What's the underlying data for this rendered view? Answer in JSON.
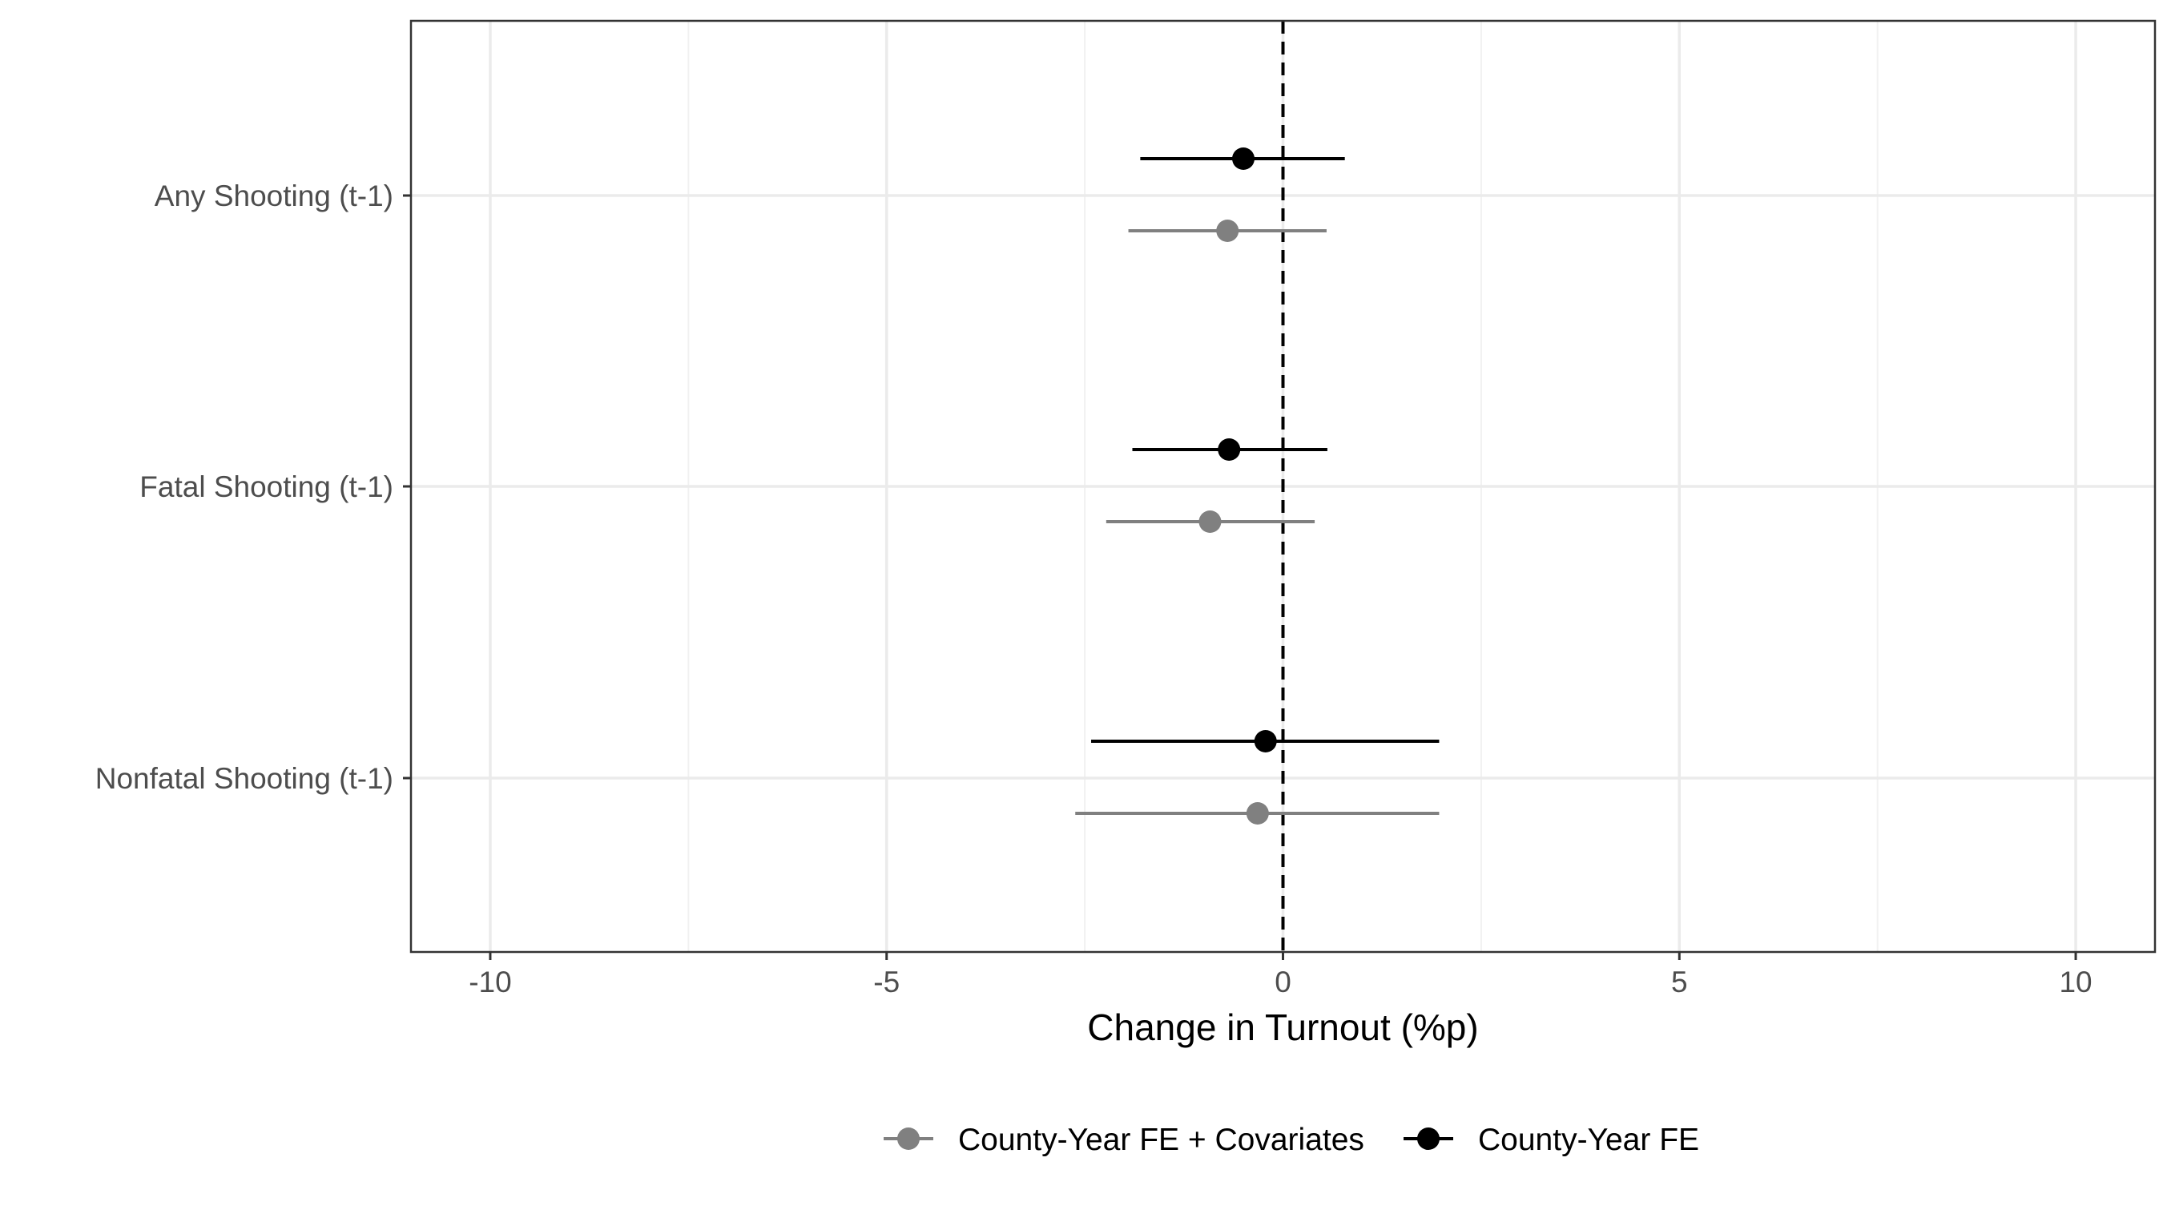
{
  "chart_data": {
    "type": "scatter",
    "subtype": "coefficient-plot",
    "title": "",
    "xlabel": "Change in Turnout (%p)",
    "ylabel": "",
    "xlim": [
      -11,
      11
    ],
    "x_ticks": [
      -10,
      -5,
      0,
      5,
      10
    ],
    "x_tick_labels": [
      "-10",
      "-5",
      "0",
      "5",
      "10"
    ],
    "x_minor_ticks": [
      -7.5,
      -2.5,
      2.5,
      7.5
    ],
    "grid": true,
    "reference_line": {
      "x": 0,
      "style": "dashed",
      "color": "#000000"
    },
    "categories": [
      "Any Shooting (t-1)",
      "Fatal Shooting (t-1)",
      "Nonfatal Shooting (t-1)"
    ],
    "legend_position": "bottom",
    "series": [
      {
        "name": "County-Year FE + Covariates",
        "color": "#808080",
        "points": [
          {
            "category": "Any Shooting (t-1)",
            "estimate": -0.7,
            "ci_low": -1.95,
            "ci_high": 0.55
          },
          {
            "category": "Fatal Shooting (t-1)",
            "estimate": -0.92,
            "ci_low": -2.23,
            "ci_high": 0.4
          },
          {
            "category": "Nonfatal Shooting (t-1)",
            "estimate": -0.32,
            "ci_low": -2.62,
            "ci_high": 1.97
          }
        ]
      },
      {
        "name": "County-Year FE",
        "color": "#000000",
        "points": [
          {
            "category": "Any Shooting (t-1)",
            "estimate": -0.5,
            "ci_low": -1.8,
            "ci_high": 0.78
          },
          {
            "category": "Fatal Shooting (t-1)",
            "estimate": -0.68,
            "ci_low": -1.9,
            "ci_high": 0.56
          },
          {
            "category": "Nonfatal Shooting (t-1)",
            "estimate": -0.22,
            "ci_low": -2.42,
            "ci_high": 1.97
          }
        ]
      }
    ]
  }
}
